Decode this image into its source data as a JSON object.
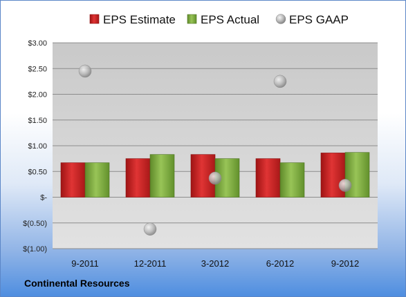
{
  "chart_data": {
    "type": "bar",
    "categories": [
      "9-2011",
      "12-2011",
      "3-2012",
      "6-2012",
      "9-2012"
    ],
    "series": [
      {
        "name": "EPS Estimate",
        "kind": "bar",
        "color": "#d42a2a",
        "values": [
          0.67,
          0.75,
          0.83,
          0.75,
          0.86
        ]
      },
      {
        "name": "EPS Actual",
        "kind": "bar",
        "color": "#8ab84a",
        "values": [
          0.67,
          0.83,
          0.75,
          0.67,
          0.87
        ]
      },
      {
        "name": "EPS GAAP",
        "kind": "scatter",
        "color": "#b8b8b8",
        "values": [
          2.45,
          -0.62,
          0.37,
          2.25,
          0.23
        ]
      }
    ],
    "ylim": [
      -1.0,
      3.0
    ],
    "yticks": [
      {
        "value": 3.0,
        "label": "$3.00"
      },
      {
        "value": 2.5,
        "label": "$2.50"
      },
      {
        "value": 2.0,
        "label": "$2.00"
      },
      {
        "value": 1.5,
        "label": "$1.50"
      },
      {
        "value": 1.0,
        "label": "$1.00"
      },
      {
        "value": 0.5,
        "label": "$0.50"
      },
      {
        "value": 0.0,
        "label": "$-"
      },
      {
        "value": -0.5,
        "label": "$(0.50)"
      },
      {
        "value": -1.0,
        "label": "$(1.00)"
      }
    ],
    "grid": true,
    "legend": "top"
  },
  "footer": {
    "company": "Continental Resources"
  }
}
